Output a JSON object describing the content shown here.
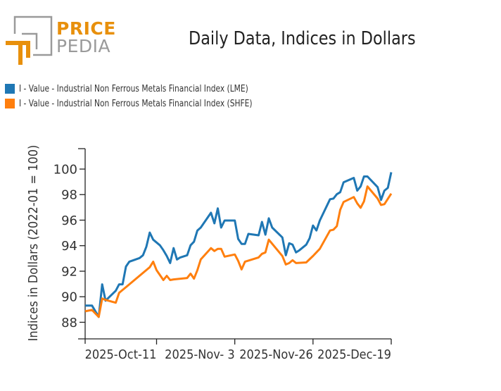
{
  "logo": {
    "line1": "PRICE",
    "line2": "PEDIA",
    "accent": "#e8900c",
    "gray": "#9a9a9a"
  },
  "chart_data": {
    "type": "line",
    "title": "Daily Data, Indices in Dollars",
    "xlabel": "",
    "ylabel": "Indices in Dollars (2022-01 = 100)",
    "ylim": [
      86.7,
      101.6
    ],
    "xlim": [
      "2025-09-20",
      "2025-12-19"
    ],
    "yticks": [
      88,
      90,
      92,
      94,
      96,
      98,
      100
    ],
    "xticks": [
      {
        "date": "2025-10-11",
        "label": "2025-Oct-11"
      },
      {
        "date": "2025-11-03",
        "label": "2025-Nov- 3"
      },
      {
        "date": "2025-11-26",
        "label": "2025-Nov-26"
      },
      {
        "date": "2025-12-19",
        "label": "2025-Dec-19"
      }
    ],
    "grid": false,
    "legend_position": "top-left",
    "series": [
      {
        "name": "I - Value - Industrial Non Ferrous Metals Financial Index (LME)",
        "color": "#1f77b4",
        "points": [
          [
            "2025-09-20",
            89.31
          ],
          [
            "2025-09-22",
            89.31
          ],
          [
            "2025-09-24",
            88.42
          ],
          [
            "2025-09-25",
            90.97
          ],
          [
            "2025-09-26",
            89.69
          ],
          [
            "2025-09-29",
            90.47
          ],
          [
            "2025-09-30",
            90.97
          ],
          [
            "2025-10-01",
            90.97
          ],
          [
            "2025-10-02",
            92.36
          ],
          [
            "2025-10-03",
            92.75
          ],
          [
            "2025-10-06",
            93.03
          ],
          [
            "2025-10-07",
            93.25
          ],
          [
            "2025-10-08",
            93.92
          ],
          [
            "2025-10-09",
            95.03
          ],
          [
            "2025-10-10",
            94.47
          ],
          [
            "2025-10-12",
            94.03
          ],
          [
            "2025-10-13",
            93.64
          ],
          [
            "2025-10-14",
            93.19
          ],
          [
            "2025-10-15",
            92.64
          ],
          [
            "2025-10-16",
            93.81
          ],
          [
            "2025-10-17",
            92.92
          ],
          [
            "2025-10-18",
            93.08
          ],
          [
            "2025-10-20",
            93.25
          ],
          [
            "2025-10-21",
            94.03
          ],
          [
            "2025-10-22",
            94.31
          ],
          [
            "2025-10-23",
            95.19
          ],
          [
            "2025-10-24",
            95.42
          ],
          [
            "2025-10-27",
            96.58
          ],
          [
            "2025-10-28",
            95.75
          ],
          [
            "2025-10-29",
            96.92
          ],
          [
            "2025-10-30",
            95.42
          ],
          [
            "2025-10-31",
            95.97
          ],
          [
            "2025-11-03",
            95.97
          ],
          [
            "2025-11-04",
            94.53
          ],
          [
            "2025-11-05",
            94.14
          ],
          [
            "2025-11-06",
            94.14
          ],
          [
            "2025-11-07",
            94.92
          ],
          [
            "2025-11-10",
            94.81
          ],
          [
            "2025-11-11",
            95.86
          ],
          [
            "2025-11-12",
            94.86
          ],
          [
            "2025-11-13",
            96.14
          ],
          [
            "2025-11-14",
            95.42
          ],
          [
            "2025-11-17",
            94.64
          ],
          [
            "2025-11-18",
            93.25
          ],
          [
            "2025-11-19",
            94.19
          ],
          [
            "2025-11-20",
            94.08
          ],
          [
            "2025-11-21",
            93.47
          ],
          [
            "2025-11-22",
            93.64
          ],
          [
            "2025-11-24",
            94.08
          ],
          [
            "2025-11-25",
            94.58
          ],
          [
            "2025-11-26",
            95.58
          ],
          [
            "2025-11-27",
            95.19
          ],
          [
            "2025-11-28",
            95.97
          ],
          [
            "2025-12-01",
            97.64
          ],
          [
            "2025-12-02",
            97.69
          ],
          [
            "2025-12-03",
            98.03
          ],
          [
            "2025-12-04",
            98.19
          ],
          [
            "2025-12-05",
            98.97
          ],
          [
            "2025-12-08",
            99.31
          ],
          [
            "2025-12-09",
            98.31
          ],
          [
            "2025-12-10",
            98.64
          ],
          [
            "2025-12-11",
            99.42
          ],
          [
            "2025-12-12",
            99.42
          ],
          [
            "2025-12-15",
            98.58
          ],
          [
            "2025-12-16",
            97.58
          ],
          [
            "2025-12-17",
            98.31
          ],
          [
            "2025-12-18",
            98.53
          ],
          [
            "2025-12-19",
            99.75
          ]
        ]
      },
      {
        "name": "I - Value - Industrial Non Ferrous Metals Financial Index (SHFE)",
        "color": "#ff7f0e",
        "points": [
          [
            "2025-09-20",
            88.86
          ],
          [
            "2025-09-22",
            88.97
          ],
          [
            "2025-09-24",
            88.42
          ],
          [
            "2025-09-25",
            89.86
          ],
          [
            "2025-09-26",
            89.75
          ],
          [
            "2025-09-29",
            89.53
          ],
          [
            "2025-09-30",
            90.31
          ],
          [
            "2025-10-02",
            90.75
          ],
          [
            "2025-10-09",
            92.31
          ],
          [
            "2025-10-10",
            92.75
          ],
          [
            "2025-10-11",
            92.08
          ],
          [
            "2025-10-13",
            91.31
          ],
          [
            "2025-10-14",
            91.64
          ],
          [
            "2025-10-15",
            91.31
          ],
          [
            "2025-10-16",
            91.36
          ],
          [
            "2025-10-20",
            91.47
          ],
          [
            "2025-10-21",
            91.81
          ],
          [
            "2025-10-22",
            91.42
          ],
          [
            "2025-10-23",
            92.08
          ],
          [
            "2025-10-24",
            92.92
          ],
          [
            "2025-10-27",
            93.81
          ],
          [
            "2025-10-28",
            93.58
          ],
          [
            "2025-10-29",
            93.75
          ],
          [
            "2025-10-30",
            93.75
          ],
          [
            "2025-10-31",
            93.14
          ],
          [
            "2025-11-03",
            93.31
          ],
          [
            "2025-11-04",
            92.81
          ],
          [
            "2025-11-05",
            92.14
          ],
          [
            "2025-11-06",
            92.75
          ],
          [
            "2025-11-10",
            93.08
          ],
          [
            "2025-11-11",
            93.36
          ],
          [
            "2025-11-12",
            93.47
          ],
          [
            "2025-11-13",
            94.47
          ],
          [
            "2025-11-17",
            93.19
          ],
          [
            "2025-11-18",
            92.53
          ],
          [
            "2025-11-19",
            92.64
          ],
          [
            "2025-11-20",
            92.86
          ],
          [
            "2025-11-21",
            92.64
          ],
          [
            "2025-11-24",
            92.69
          ],
          [
            "2025-11-26",
            93.19
          ],
          [
            "2025-11-28",
            93.75
          ],
          [
            "2025-12-01",
            95.19
          ],
          [
            "2025-12-02",
            95.25
          ],
          [
            "2025-12-03",
            95.53
          ],
          [
            "2025-12-04",
            96.81
          ],
          [
            "2025-12-05",
            97.42
          ],
          [
            "2025-12-08",
            97.81
          ],
          [
            "2025-12-09",
            97.31
          ],
          [
            "2025-12-10",
            96.97
          ],
          [
            "2025-12-11",
            97.47
          ],
          [
            "2025-12-12",
            98.64
          ],
          [
            "2025-12-15",
            97.69
          ],
          [
            "2025-12-16",
            97.19
          ],
          [
            "2025-12-17",
            97.25
          ],
          [
            "2025-12-19",
            98.08
          ]
        ]
      }
    ]
  }
}
